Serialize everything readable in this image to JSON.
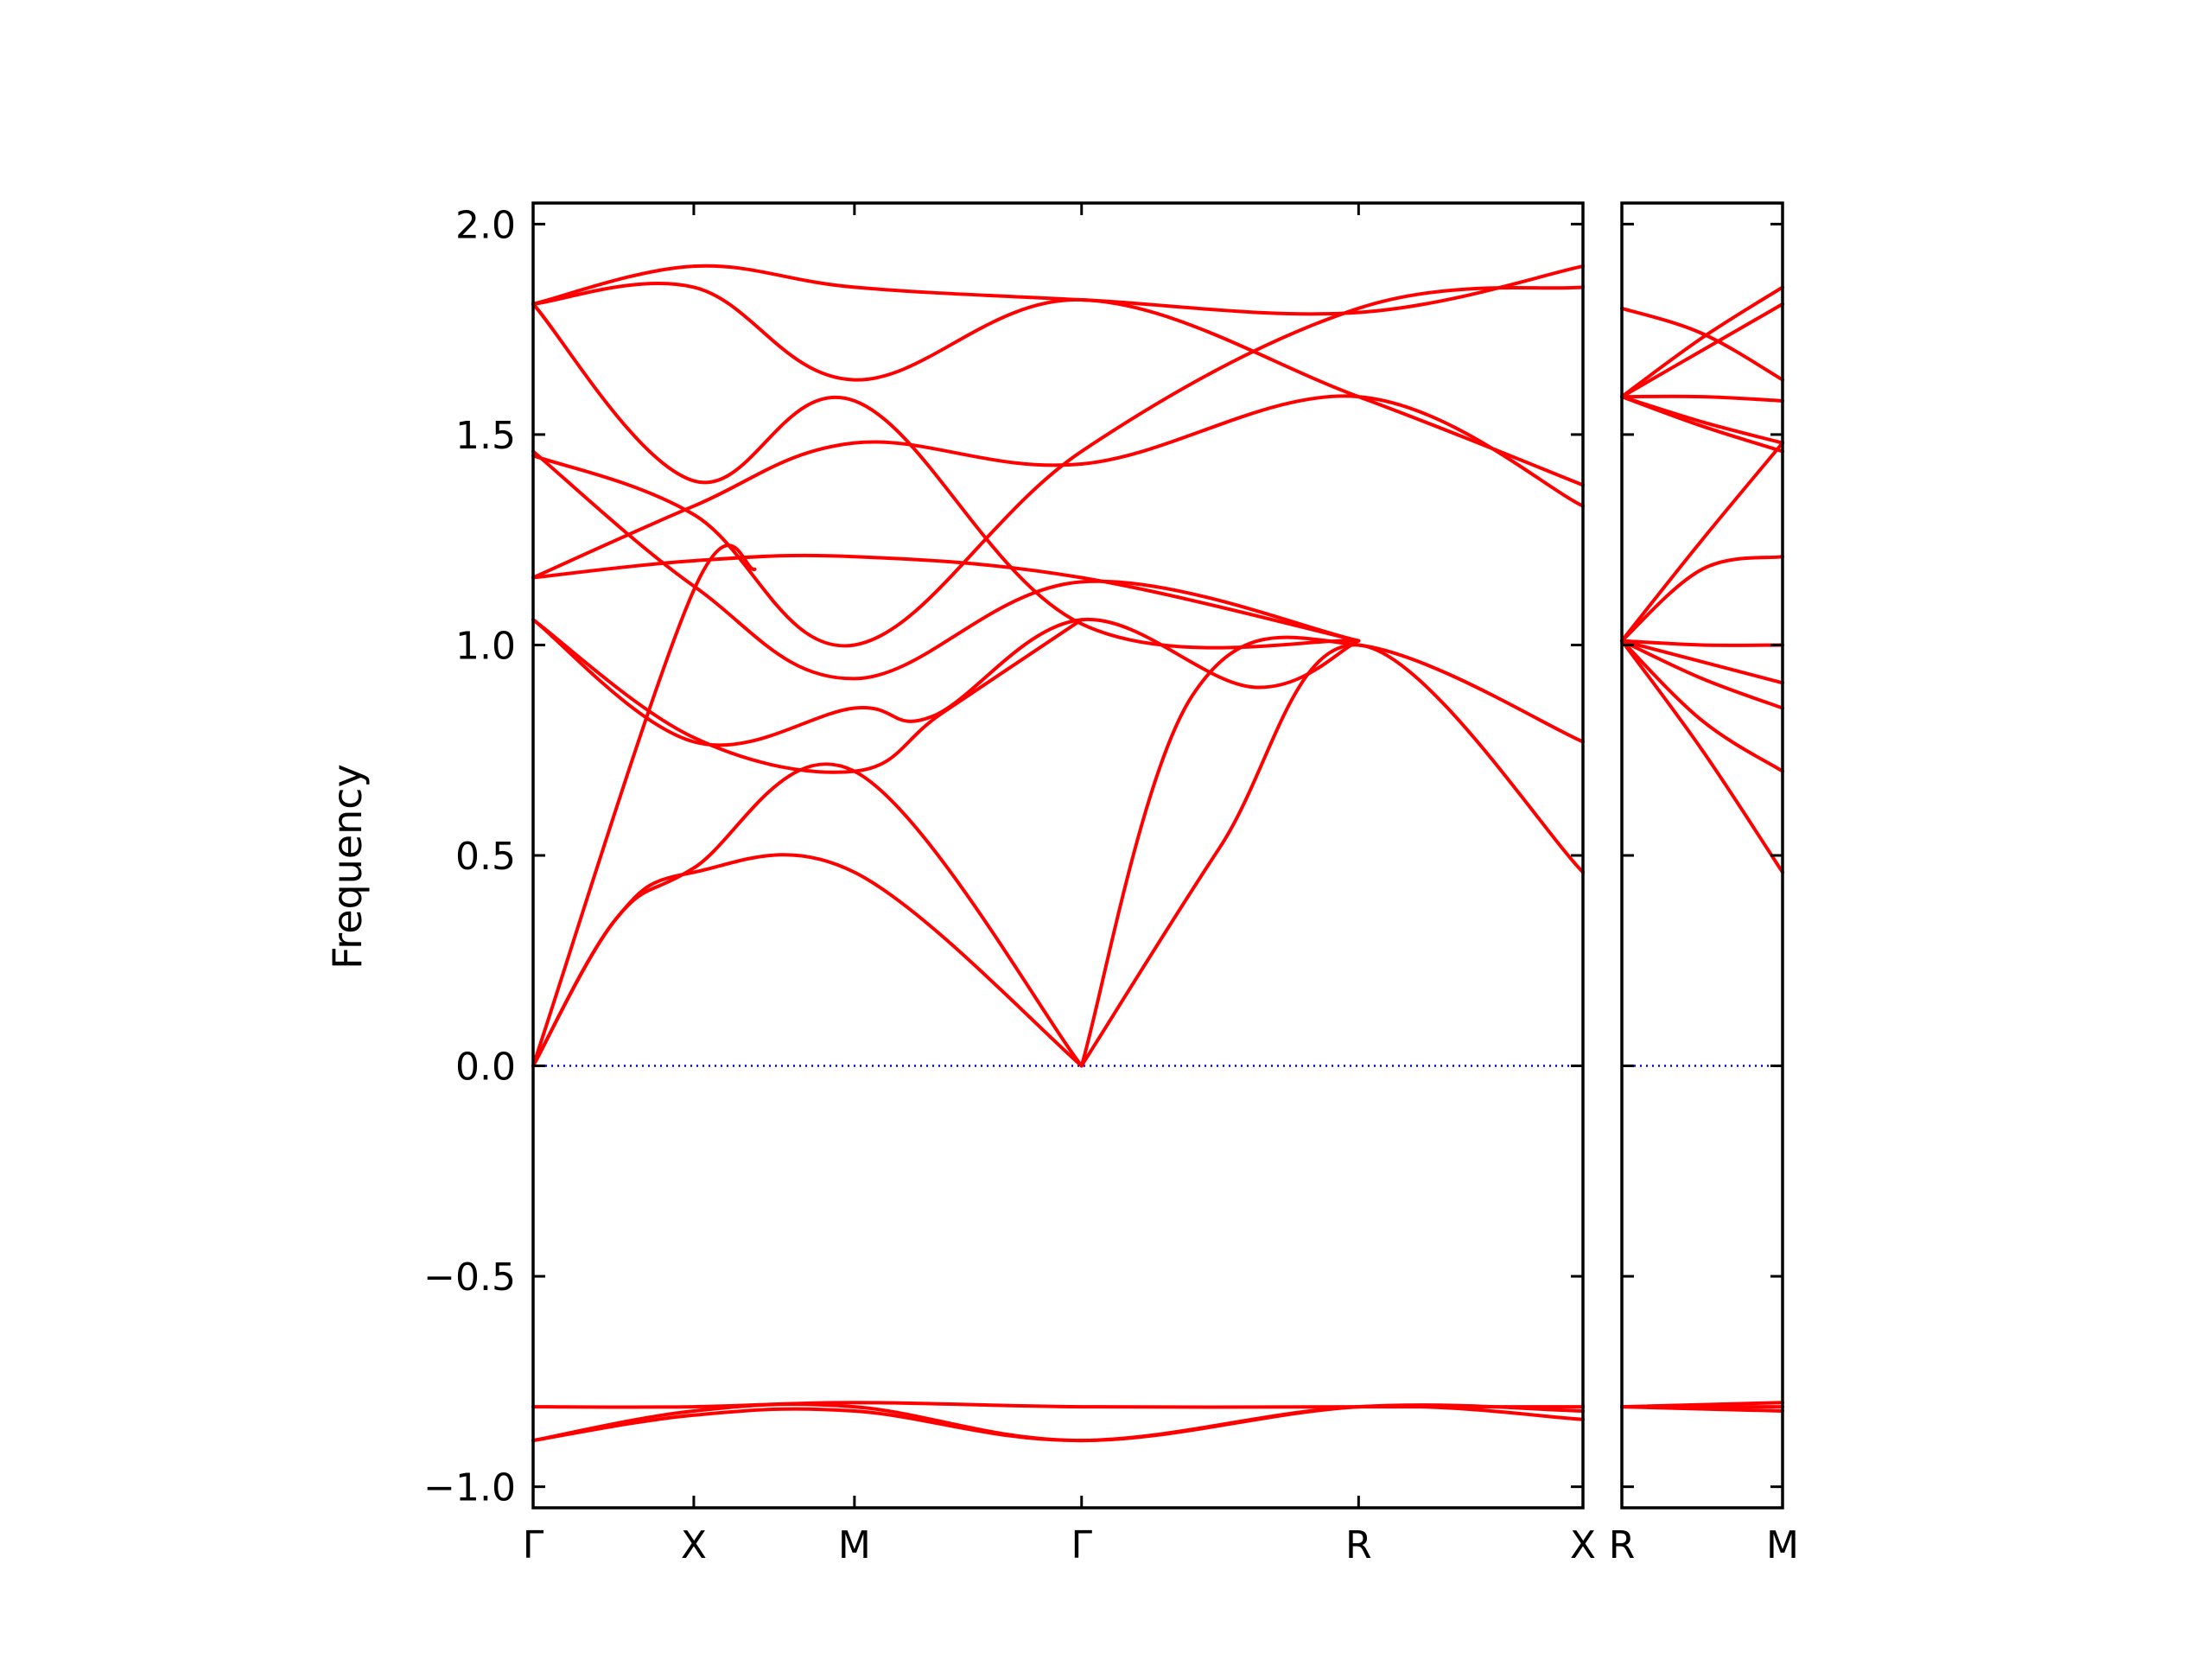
{
  "chart_data": {
    "type": "line",
    "title": "",
    "ylabel": "Frequency",
    "ylim": [
      -1.05,
      2.05
    ],
    "yticks": [
      2.0,
      1.5,
      1.0,
      0.5,
      0.0,
      -0.5,
      -1.0
    ],
    "ytick_labels": [
      "2.0",
      "1.5",
      "1.0",
      "0.5",
      "0.0",
      "−0.5",
      "−1.0"
    ],
    "grid": false,
    "colors": {
      "bands": "#ff0000",
      "zero_line": "#0000ff",
      "axes": "#000000"
    },
    "panels": [
      {
        "path": [
          "Γ",
          "X",
          "M",
          "Γ",
          "R",
          "X"
        ],
        "xlim": [
          0,
          3.79
        ],
        "kpoints": [
          0,
          0.58,
          1.16,
          1.98,
          2.98,
          3.79
        ],
        "bands": [
          {
            "x": [
              0,
              0.58,
              1.16,
              1.98,
              2.98,
              3.79
            ],
            "y": [
              -0.89,
              -0.83,
              -0.82,
              -0.89,
              -0.81,
              -0.84
            ]
          },
          {
            "x": [
              0,
              0.58,
              1.16,
              1.98,
              2.98,
              3.79
            ],
            "y": [
              -0.89,
              -0.82,
              -0.81,
              -0.89,
              -0.81,
              -0.82
            ]
          },
          {
            "x": [
              0,
              0.58,
              1.16,
              1.98,
              2.98,
              3.79
            ],
            "y": [
              -0.81,
              -0.81,
              -0.8,
              -0.81,
              -0.81,
              -0.81
            ]
          },
          {
            "x": [
              0,
              0.3,
              0.58,
              1.16,
              1.98
            ],
            "y": [
              0.0,
              0.35,
              0.46,
              0.46,
              0.0
            ]
          },
          {
            "x": [
              0,
              0.3,
              0.58,
              1.16,
              1.98
            ],
            "y": [
              0.0,
              0.35,
              0.47,
              0.7,
              0.0
            ]
          },
          {
            "x": [
              0,
              0.58,
              0.8
            ],
            "y": [
              0.0,
              1.13,
              1.18
            ]
          },
          {
            "x": [
              1.98,
              2.48,
              2.98,
              3.79
            ],
            "y": [
              0.0,
              0.52,
              1.0,
              0.46
            ]
          },
          {
            "x": [
              1.98,
              2.38,
              2.98,
              3.79
            ],
            "y": [
              0.0,
              0.88,
              1.0,
              0.77
            ]
          },
          {
            "x": [
              0,
              0.58,
              1.16,
              1.44,
              1.98,
              2.6,
              2.98
            ],
            "y": [
              1.06,
              0.77,
              0.85,
              0.83,
              1.06,
              0.9,
              1.01
            ]
          },
          {
            "x": [
              0,
              0.58,
              1.16,
              1.48,
              1.98
            ],
            "y": [
              1.06,
              0.78,
              0.7,
              0.84,
              1.06
            ]
          },
          {
            "x": [
              0,
              0.58,
              1.16,
              1.98,
              2.98
            ],
            "y": [
              1.16,
              1.2,
              1.21,
              1.16,
              1.01
            ]
          },
          {
            "x": [
              0,
              0.58,
              1.16,
              1.98,
              2.98,
              3.79
            ],
            "y": [
              1.16,
              1.33,
              1.48,
              1.43,
              1.59,
              1.33
            ]
          },
          {
            "x": [
              0,
              0.58,
              1.16,
              1.98,
              2.98
            ],
            "y": [
              1.46,
              1.14,
              0.92,
              1.15,
              1.01
            ]
          },
          {
            "x": [
              0,
              0.58,
              1.16,
              1.98,
              2.98,
              3.79
            ],
            "y": [
              1.45,
              1.31,
              1.0,
              1.46,
              1.8,
              1.85
            ]
          },
          {
            "x": [
              0,
              0.58,
              1.16,
              1.98,
              2.98,
              3.79
            ],
            "y": [
              1.81,
              1.85,
              1.63,
              1.82,
              1.59,
              1.38
            ]
          },
          {
            "x": [
              0,
              0.58,
              1.16,
              1.98,
              2.98,
              3.79
            ],
            "y": [
              1.81,
              1.9,
              1.85,
              1.82,
              1.79,
              1.9
            ]
          },
          {
            "x": [
              0,
              0.58,
              1.16,
              1.98,
              2.98
            ],
            "y": [
              1.81,
              1.39,
              1.58,
              1.05,
              1.01
            ]
          }
        ]
      },
      {
        "path": [
          "R",
          "M"
        ],
        "xlim": [
          0,
          0.58
        ],
        "kpoints": [
          0,
          0.58
        ],
        "bands": [
          {
            "x": [
              0,
              0.58
            ],
            "y": [
              -0.81,
              -0.82
            ]
          },
          {
            "x": [
              0,
              0.58
            ],
            "y": [
              -0.81,
              -0.81
            ]
          },
          {
            "x": [
              0,
              0.58
            ],
            "y": [
              -0.81,
              -0.8
            ]
          },
          {
            "x": [
              0,
              0.29,
              0.58
            ],
            "y": [
              1.01,
              0.75,
              0.46
            ]
          },
          {
            "x": [
              0,
              0.29,
              0.58
            ],
            "y": [
              1.01,
              0.82,
              0.7
            ]
          },
          {
            "x": [
              0,
              0.29,
              0.58
            ],
            "y": [
              1.01,
              0.92,
              0.85
            ]
          },
          {
            "x": [
              0,
              0.29,
              0.58
            ],
            "y": [
              1.01,
              0.96,
              0.91
            ]
          },
          {
            "x": [
              0,
              0.29,
              0.58
            ],
            "y": [
              1.01,
              1.0,
              1.0
            ]
          },
          {
            "x": [
              0,
              0.29,
              0.58
            ],
            "y": [
              1.01,
              1.18,
              1.21
            ]
          },
          {
            "x": [
              0,
              0.29,
              0.58
            ],
            "y": [
              1.01,
              1.25,
              1.48
            ]
          },
          {
            "x": [
              0,
              0.29,
              0.58
            ],
            "y": [
              1.59,
              1.52,
              1.46
            ]
          },
          {
            "x": [
              0,
              0.29,
              0.58
            ],
            "y": [
              1.59,
              1.53,
              1.48
            ]
          },
          {
            "x": [
              0,
              0.29,
              0.58
            ],
            "y": [
              1.59,
              1.59,
              1.58
            ]
          },
          {
            "x": [
              0,
              0.29,
              0.58
            ],
            "y": [
              1.59,
              1.7,
              1.81
            ]
          },
          {
            "x": [
              0,
              0.29,
              0.58
            ],
            "y": [
              1.59,
              1.73,
              1.85
            ]
          },
          {
            "x": [
              0,
              0.29,
              0.58
            ],
            "y": [
              1.8,
              1.74,
              1.63
            ]
          }
        ]
      }
    ]
  }
}
